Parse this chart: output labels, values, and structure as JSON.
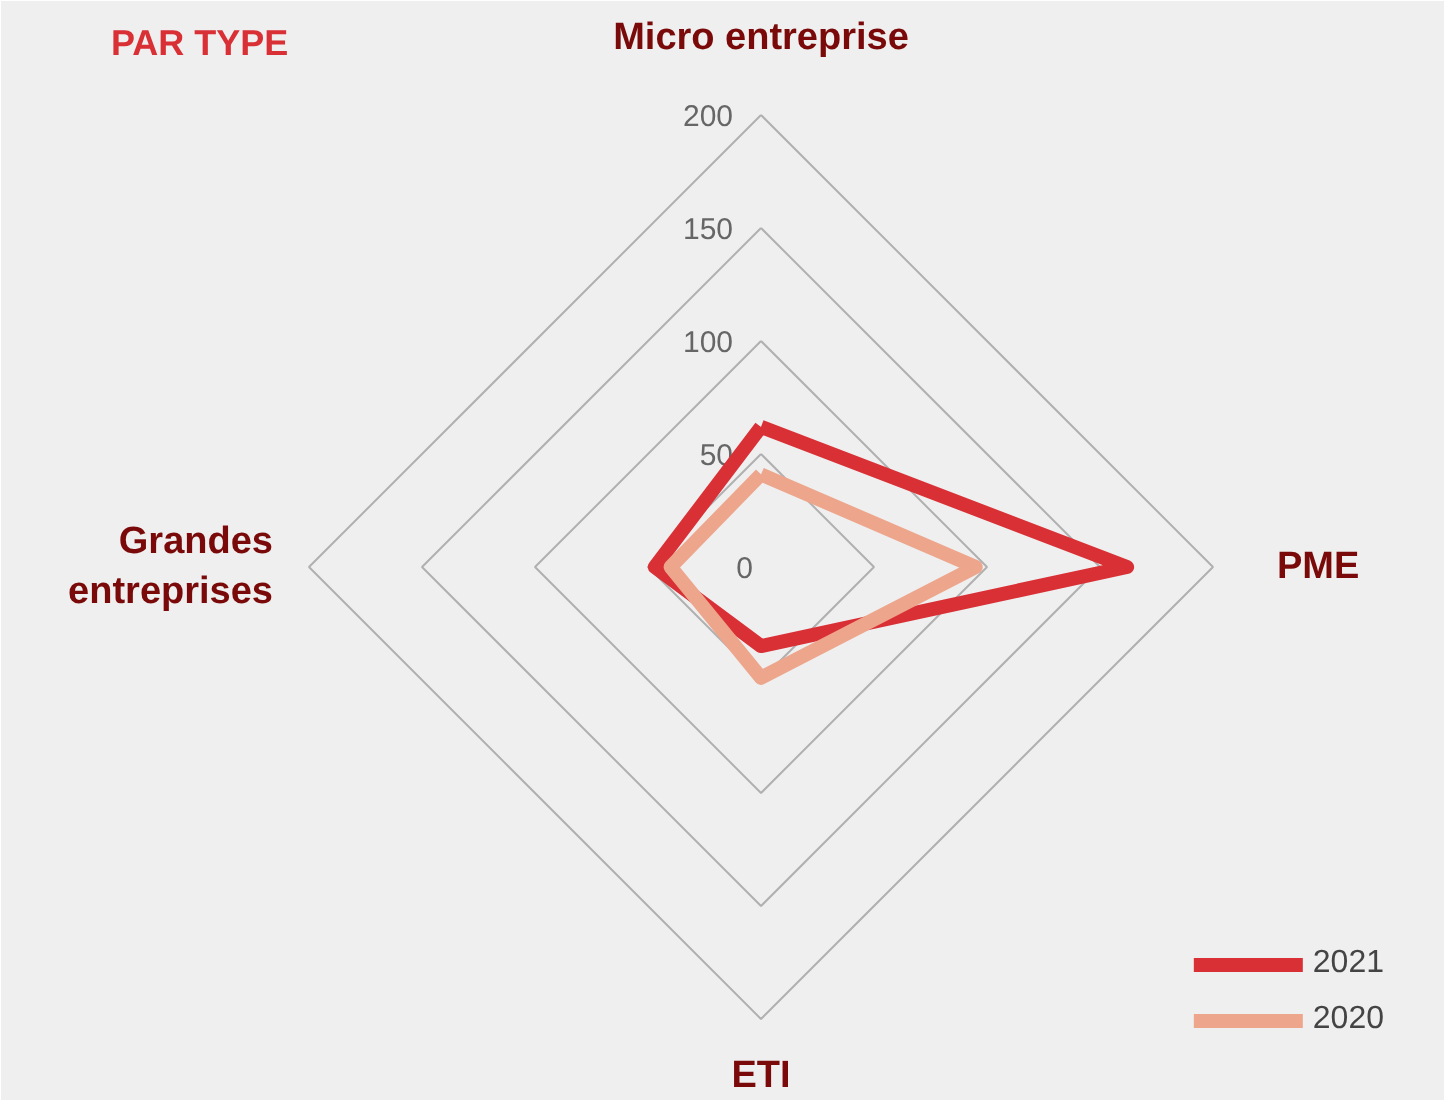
{
  "chart_data": {
    "type": "radar",
    "title": "PAR TYPE",
    "categories": [
      "Micro entreprise",
      "PME",
      "ETI",
      "Grandes entreprises"
    ],
    "series": [
      {
        "name": "2021",
        "color": "#d93036",
        "values": [
          62,
          162,
          35,
          47
        ]
      },
      {
        "name": "2020",
        "color": "#eda58c",
        "values": [
          41,
          95,
          49,
          40
        ]
      }
    ],
    "ylim": [
      0,
      200
    ],
    "yticks": [
      0,
      50,
      100,
      150,
      200
    ],
    "grid": true,
    "legend": "bottom right"
  }
}
